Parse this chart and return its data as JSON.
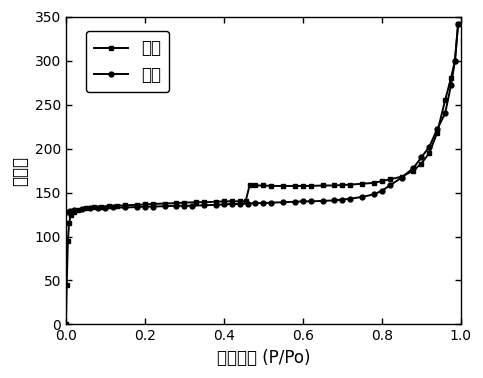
{
  "adsorption_x": [
    0.0,
    0.002,
    0.005,
    0.008,
    0.012,
    0.02,
    0.03,
    0.05,
    0.07,
    0.09,
    0.11,
    0.13,
    0.15,
    0.18,
    0.2,
    0.22,
    0.25,
    0.28,
    0.3,
    0.33,
    0.35,
    0.38,
    0.4,
    0.42,
    0.44,
    0.455,
    0.465,
    0.48,
    0.5,
    0.52,
    0.55,
    0.58,
    0.6,
    0.62,
    0.65,
    0.68,
    0.7,
    0.72,
    0.75,
    0.78,
    0.8,
    0.82,
    0.85,
    0.88,
    0.9,
    0.92,
    0.94,
    0.96,
    0.975,
    0.985,
    0.993
  ],
  "adsorption_y": [
    0.0,
    45,
    95,
    115,
    124,
    128,
    130,
    132,
    133,
    134,
    134.5,
    135,
    135.5,
    136,
    136.5,
    137,
    137.5,
    138,
    138.5,
    139,
    139,
    139.5,
    140,
    140,
    140,
    140,
    158,
    158,
    158,
    157.5,
    157.5,
    157.5,
    157.5,
    157.5,
    158,
    158,
    158.5,
    159,
    160,
    161,
    163,
    165,
    168,
    175,
    183,
    195,
    218,
    255,
    280,
    300,
    342
  ],
  "desorption_x": [
    0.993,
    0.985,
    0.975,
    0.96,
    0.94,
    0.92,
    0.9,
    0.88,
    0.85,
    0.82,
    0.8,
    0.78,
    0.75,
    0.72,
    0.7,
    0.68,
    0.65,
    0.62,
    0.6,
    0.58,
    0.55,
    0.52,
    0.5,
    0.48,
    0.46,
    0.44,
    0.42,
    0.4,
    0.38,
    0.35,
    0.32,
    0.3,
    0.28,
    0.25,
    0.22,
    0.2,
    0.18,
    0.15,
    0.12,
    0.1,
    0.08,
    0.06,
    0.04,
    0.02,
    0.01,
    0.005
  ],
  "desorption_y": [
    342,
    300,
    272,
    240,
    222,
    202,
    190,
    178,
    167,
    158,
    152,
    148,
    145,
    143,
    142,
    141,
    140.5,
    140,
    140,
    139.5,
    139,
    138.5,
    138,
    138,
    137.5,
    137,
    137,
    136.5,
    136,
    135.5,
    135,
    135,
    135,
    134.5,
    134,
    134,
    133.5,
    133,
    133,
    132.5,
    132,
    132,
    131,
    130,
    129,
    128
  ],
  "xlabel": "相对压力 (P/Po)",
  "ylabel": "吸附量",
  "legend_adsorption": "吸附",
  "legend_desorption": "脱附",
  "ylim": [
    0,
    350
  ],
  "xlim": [
    0.0,
    1.0
  ],
  "yticks": [
    0,
    50,
    100,
    150,
    200,
    250,
    300,
    350
  ],
  "xticks": [
    0.0,
    0.2,
    0.4,
    0.6,
    0.8,
    1.0
  ],
  "line_color": "#000000",
  "background_color": "#ffffff",
  "marker_adsorption": "s",
  "marker_desorption": "o",
  "marker_size": 3.5,
  "line_width": 1.4,
  "font_size_label": 12,
  "font_size_tick": 10,
  "font_size_legend": 12
}
